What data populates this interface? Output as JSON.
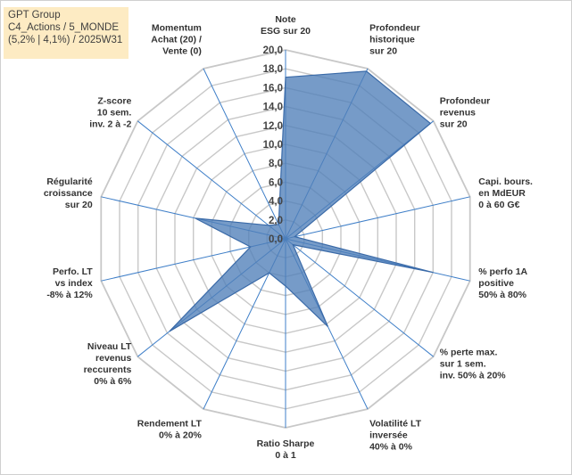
{
  "info_box": {
    "line1": "GPT Group",
    "line2": "C4_Actions / 5_MONDE",
    "line3": "(5,2% | 4,1%) / 2025W31"
  },
  "chart_data": {
    "type": "radar",
    "title": "",
    "range": [
      0,
      20
    ],
    "tick_step": 2,
    "tick_labels": [
      "0,0",
      "2,0",
      "4,0",
      "6,0",
      "8,0",
      "10,0",
      "12,0",
      "14,0",
      "16,0",
      "18,0",
      "20,0"
    ],
    "axes": [
      [
        "Note",
        "ESG sur 20"
      ],
      [
        "Profondeur",
        "historique",
        "sur 20"
      ],
      [
        "Profondeur",
        "revenus",
        "sur 20"
      ],
      [
        "Capi. bours.",
        "en MdEUR",
        "0 à 60 G€"
      ],
      [
        "% perfo 1A",
        "positive",
        "50% à 80%"
      ],
      [
        "% perte max.",
        "sur 1 sem.",
        "inv. 50% à 20%"
      ],
      [
        "Volatilité LT",
        "inversée",
        "40% à 0%"
      ],
      [
        "Ratio Sharpe",
        "0 à 1"
      ],
      [
        "Rendement LT",
        "0% à 20%"
      ],
      [
        "Niveau LT",
        "revenus",
        "reccurents",
        "0% à 6%"
      ],
      [
        "Perfo. LT",
        "vs index",
        "-8% à 12%"
      ],
      [
        "Régularité",
        "croissance",
        "sur 20"
      ],
      [
        "Z-score",
        "10 sem.",
        "inv. 2 à -2"
      ],
      [
        "Momentum",
        "Achat (20) /",
        "Vente (0)"
      ]
    ],
    "series": [
      {
        "values": [
          17.1,
          19.7,
          19.6,
          1.0,
          16.0,
          1.0,
          10.3,
          5.0,
          4.0,
          15.7,
          3.8,
          9.8,
          2.3,
          1.7
        ]
      }
    ],
    "colors": {
      "fill": "#4f7fb8",
      "fill_opacity": 0.78,
      "stroke": "#3a6aa8",
      "spokes": "#3f7fc8",
      "grid": "#c8c8c8"
    },
    "grid": true,
    "legend": "none"
  }
}
